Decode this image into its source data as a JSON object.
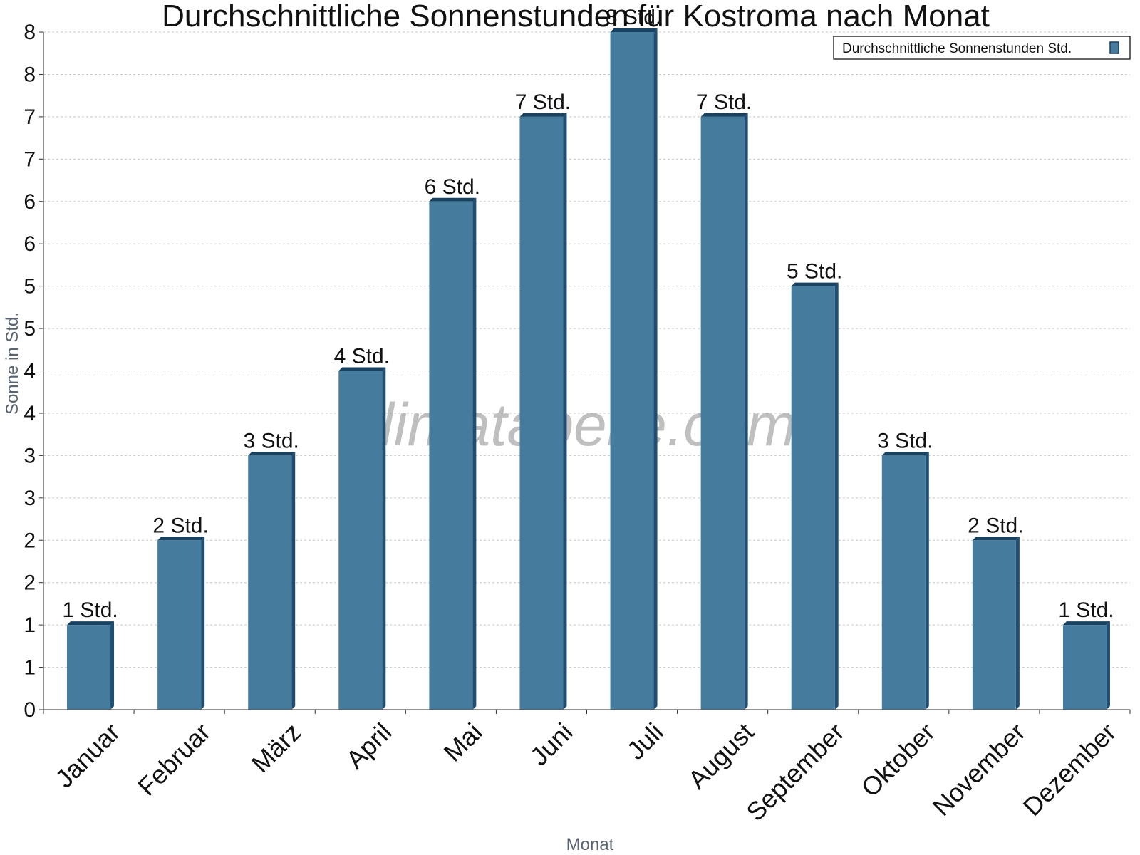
{
  "chart_data": {
    "type": "bar",
    "title": "Durchschnittliche Sonnenstunden für Kostroma nach Monat",
    "xlabel": "Monat",
    "ylabel": "Sonne in Std.",
    "categories": [
      "Januar",
      "Februar",
      "März",
      "April",
      "Mai",
      "Juni",
      "Juli",
      "August",
      "September",
      "Oktober",
      "November",
      "Dezember"
    ],
    "series": [
      {
        "name": "Durchschnittliche Sonnenstunden Std.",
        "values": [
          1,
          2,
          3,
          4,
          6,
          7,
          8,
          7,
          5,
          3,
          2,
          1
        ],
        "labels": [
          "1 Std.",
          "2 Std.",
          "3 Std.",
          "4 Std.",
          "6 Std.",
          "7 Std.",
          "8 Std.",
          "7 Std.",
          "5 Std.",
          "3 Std.",
          "2 Std.",
          "1 Std."
        ],
        "color": "#457b9d"
      }
    ],
    "ylim": [
      0,
      8
    ],
    "yticks": [
      "0",
      "1",
      "1",
      "2",
      "2",
      "3",
      "3",
      "4",
      "4",
      "5",
      "5",
      "6",
      "6",
      "7",
      "7",
      "8",
      "8"
    ],
    "grid": true,
    "legend": "top-right",
    "watermark": "klimatabelle.com"
  }
}
